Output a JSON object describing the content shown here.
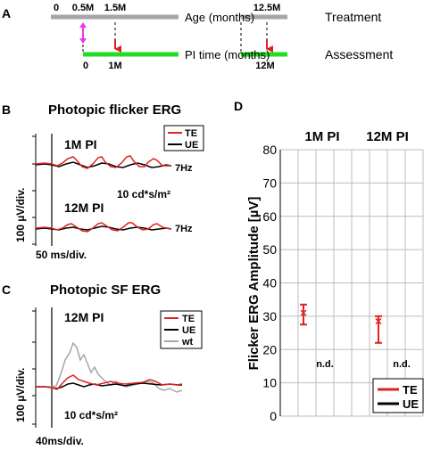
{
  "panel_a": {
    "label": "A",
    "age_ticks": [
      "0",
      "0.5M",
      "1.5M",
      "12.5M"
    ],
    "age_label": "Age (months)",
    "row1_label": "Treatment",
    "pi_ticks": [
      "0",
      "1M",
      "12M"
    ],
    "pi_label": "PI time (months)",
    "row2_label": "Assessment",
    "colors": {
      "age_bar": "#a6a6a6",
      "pi_bar": "#22dd22",
      "injection_arrow": "#ee33ee",
      "test_arrow": "#dd2222"
    }
  },
  "panel_b": {
    "label": "B",
    "title": "Photopic flicker ERG",
    "trace1_label": "1M PI",
    "trace2_label": "12M PI",
    "freq1": "7Hz",
    "freq2": "7Hz",
    "intensity": "10 cd*s/m²",
    "y_scale": "100 µV/div.",
    "x_scale": "50 ms/div.",
    "legend": [
      "TE",
      "UE"
    ]
  },
  "panel_c": {
    "label": "C",
    "title": "Photopic SF ERG",
    "trace_label": "12M PI",
    "intensity": "10 cd*s/m²",
    "y_scale": "100 µV/div.",
    "x_scale": "40ms/div.",
    "legend": [
      "TE",
      "UE",
      "wt"
    ]
  },
  "panel_d": {
    "label": "D",
    "col1": "1M PI",
    "col2": "12M PI",
    "nd1": "n.d.",
    "nd2": "n.d.",
    "legend": [
      "TE",
      "UE"
    ]
  },
  "chart_data": {
    "type": "scatter",
    "ylabel": "Flicker ERG Amplitude [µV]",
    "ylim": [
      0,
      80
    ],
    "yticks": [
      0,
      10,
      20,
      30,
      40,
      50,
      60,
      70,
      80
    ],
    "categories": [
      "1M PI",
      "12M PI"
    ],
    "series": [
      {
        "name": "TE",
        "color": "#dd2222",
        "points": [
          {
            "group": "1M PI",
            "mean": 31,
            "high": 33.5,
            "low": 27.5
          },
          {
            "group": "12M PI",
            "mean": 28.5,
            "high": 30,
            "low": 22
          }
        ]
      },
      {
        "name": "UE",
        "color": "#000000",
        "points": []
      }
    ]
  }
}
